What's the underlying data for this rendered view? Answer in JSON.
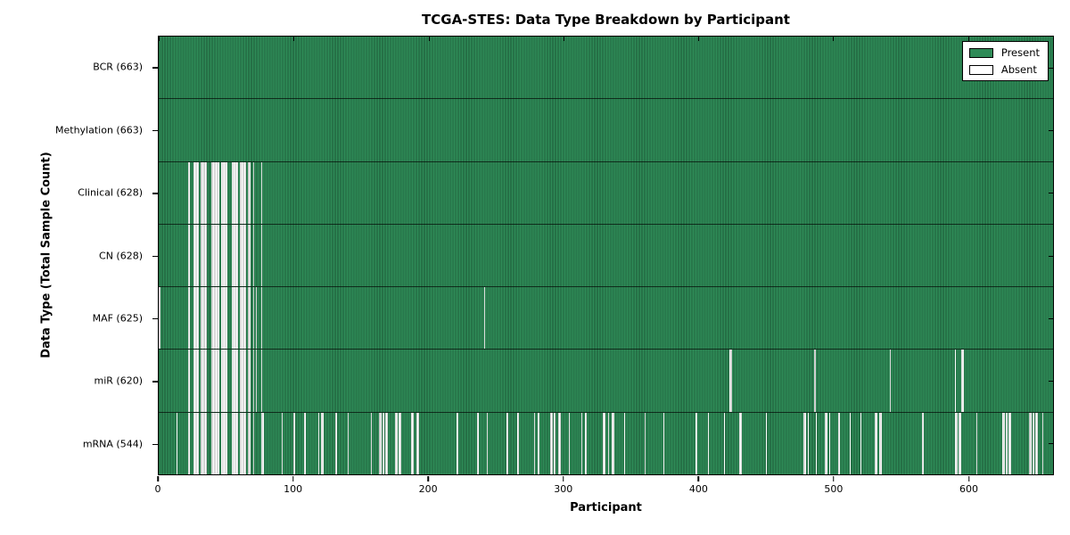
{
  "figure": {
    "title": "TCGA-STES: Data Type Breakdown by Participant",
    "xlabel": "Participant",
    "ylabel": "Data Type (Total Sample Count)"
  },
  "legend": {
    "present_label": "Present",
    "absent_label": "Absent"
  },
  "chart_data": {
    "type": "heatmap",
    "title": "TCGA-STES: Data Type Breakdown by Participant",
    "xlabel": "Participant",
    "ylabel": "Data Type (Total Sample Count)",
    "legend_position": "upper right",
    "n_participants": 663,
    "xlim": [
      0,
      663
    ],
    "x_ticks": [
      0,
      100,
      200,
      300,
      400,
      500,
      600
    ],
    "colors": {
      "present": "#2E8B57",
      "absent": "#ffffff",
      "edge": "#000000",
      "background": "#ffffff"
    },
    "legend_entries": [
      {
        "label": "Present",
        "color": "#2E8B57"
      },
      {
        "label": "Absent",
        "color": "#ffffff"
      }
    ],
    "rows": [
      {
        "name": "BCR",
        "label": "BCR (663)",
        "present_count": 663,
        "absent_ranges": []
      },
      {
        "name": "Methylation",
        "label": "Methylation (663)",
        "present_count": 663,
        "absent_ranges": []
      },
      {
        "name": "Clinical",
        "label": "Clinical (628)",
        "present_count": 628,
        "absent_ranges": [
          [
            22,
            22
          ],
          [
            26,
            29
          ],
          [
            31,
            35
          ],
          [
            39,
            44
          ],
          [
            46,
            50
          ],
          [
            54,
            58
          ],
          [
            60,
            64
          ],
          [
            66,
            67
          ],
          [
            70,
            70
          ],
          [
            76,
            76
          ]
        ]
      },
      {
        "name": "CN",
        "label": "CN (628)",
        "present_count": 628,
        "absent_ranges": [
          [
            22,
            22
          ],
          [
            26,
            29
          ],
          [
            31,
            35
          ],
          [
            39,
            44
          ],
          [
            46,
            50
          ],
          [
            54,
            58
          ],
          [
            60,
            64
          ],
          [
            66,
            67
          ],
          [
            70,
            70
          ],
          [
            76,
            76
          ]
        ]
      },
      {
        "name": "MAF",
        "label": "MAF (625)",
        "present_count": 625,
        "absent_ranges": [
          [
            0,
            0
          ],
          [
            22,
            22
          ],
          [
            26,
            29
          ],
          [
            31,
            35
          ],
          [
            39,
            44
          ],
          [
            46,
            50
          ],
          [
            54,
            58
          ],
          [
            60,
            64
          ],
          [
            66,
            67
          ],
          [
            70,
            70
          ],
          [
            72,
            72
          ],
          [
            76,
            76
          ],
          [
            241,
            241
          ]
        ]
      },
      {
        "name": "miR",
        "label": "miR (620)",
        "present_count": 620,
        "absent_ranges": [
          [
            22,
            22
          ],
          [
            26,
            29
          ],
          [
            31,
            35
          ],
          [
            39,
            44
          ],
          [
            46,
            50
          ],
          [
            54,
            58
          ],
          [
            60,
            64
          ],
          [
            66,
            67
          ],
          [
            70,
            70
          ],
          [
            72,
            72
          ],
          [
            76,
            76
          ],
          [
            423,
            424
          ],
          [
            486,
            486
          ],
          [
            542,
            542
          ],
          [
            590,
            590
          ],
          [
            595,
            596
          ]
        ]
      },
      {
        "name": "mRNA",
        "label": "mRNA (544)",
        "present_count": 544,
        "absent_ranges": [
          [
            13,
            13
          ],
          [
            22,
            22
          ],
          [
            26,
            29
          ],
          [
            31,
            35
          ],
          [
            39,
            44
          ],
          [
            46,
            50
          ],
          [
            54,
            58
          ],
          [
            60,
            64
          ],
          [
            66,
            67
          ],
          [
            70,
            70
          ],
          [
            76,
            77
          ],
          [
            91,
            91
          ],
          [
            100,
            100
          ],
          [
            108,
            108
          ],
          [
            118,
            118
          ],
          [
            120,
            121
          ],
          [
            131,
            131
          ],
          [
            140,
            140
          ],
          [
            157,
            157
          ],
          [
            163,
            164
          ],
          [
            166,
            166
          ],
          [
            168,
            169
          ],
          [
            175,
            176
          ],
          [
            178,
            179
          ],
          [
            187,
            188
          ],
          [
            191,
            192
          ],
          [
            221,
            221
          ],
          [
            236,
            236
          ],
          [
            243,
            243
          ],
          [
            258,
            258
          ],
          [
            266,
            266
          ],
          [
            278,
            278
          ],
          [
            281,
            281
          ],
          [
            290,
            291
          ],
          [
            293,
            293
          ],
          [
            296,
            297
          ],
          [
            304,
            304
          ],
          [
            313,
            313
          ],
          [
            316,
            316
          ],
          [
            329,
            330
          ],
          [
            333,
            333
          ],
          [
            336,
            337
          ],
          [
            345,
            345
          ],
          [
            360,
            360
          ],
          [
            374,
            374
          ],
          [
            398,
            398
          ],
          [
            407,
            407
          ],
          [
            419,
            419
          ],
          [
            430,
            431
          ],
          [
            450,
            450
          ],
          [
            478,
            479
          ],
          [
            481,
            481
          ],
          [
            487,
            487
          ],
          [
            494,
            495
          ],
          [
            497,
            497
          ],
          [
            504,
            504
          ],
          [
            512,
            512
          ],
          [
            520,
            520
          ],
          [
            531,
            532
          ],
          [
            534,
            535
          ],
          [
            566,
            566
          ],
          [
            590,
            591
          ],
          [
            593,
            594
          ],
          [
            606,
            606
          ],
          [
            625,
            626
          ],
          [
            628,
            628
          ],
          [
            630,
            631
          ],
          [
            645,
            646
          ],
          [
            648,
            648
          ],
          [
            650,
            651
          ],
          [
            655,
            655
          ]
        ]
      }
    ]
  }
}
